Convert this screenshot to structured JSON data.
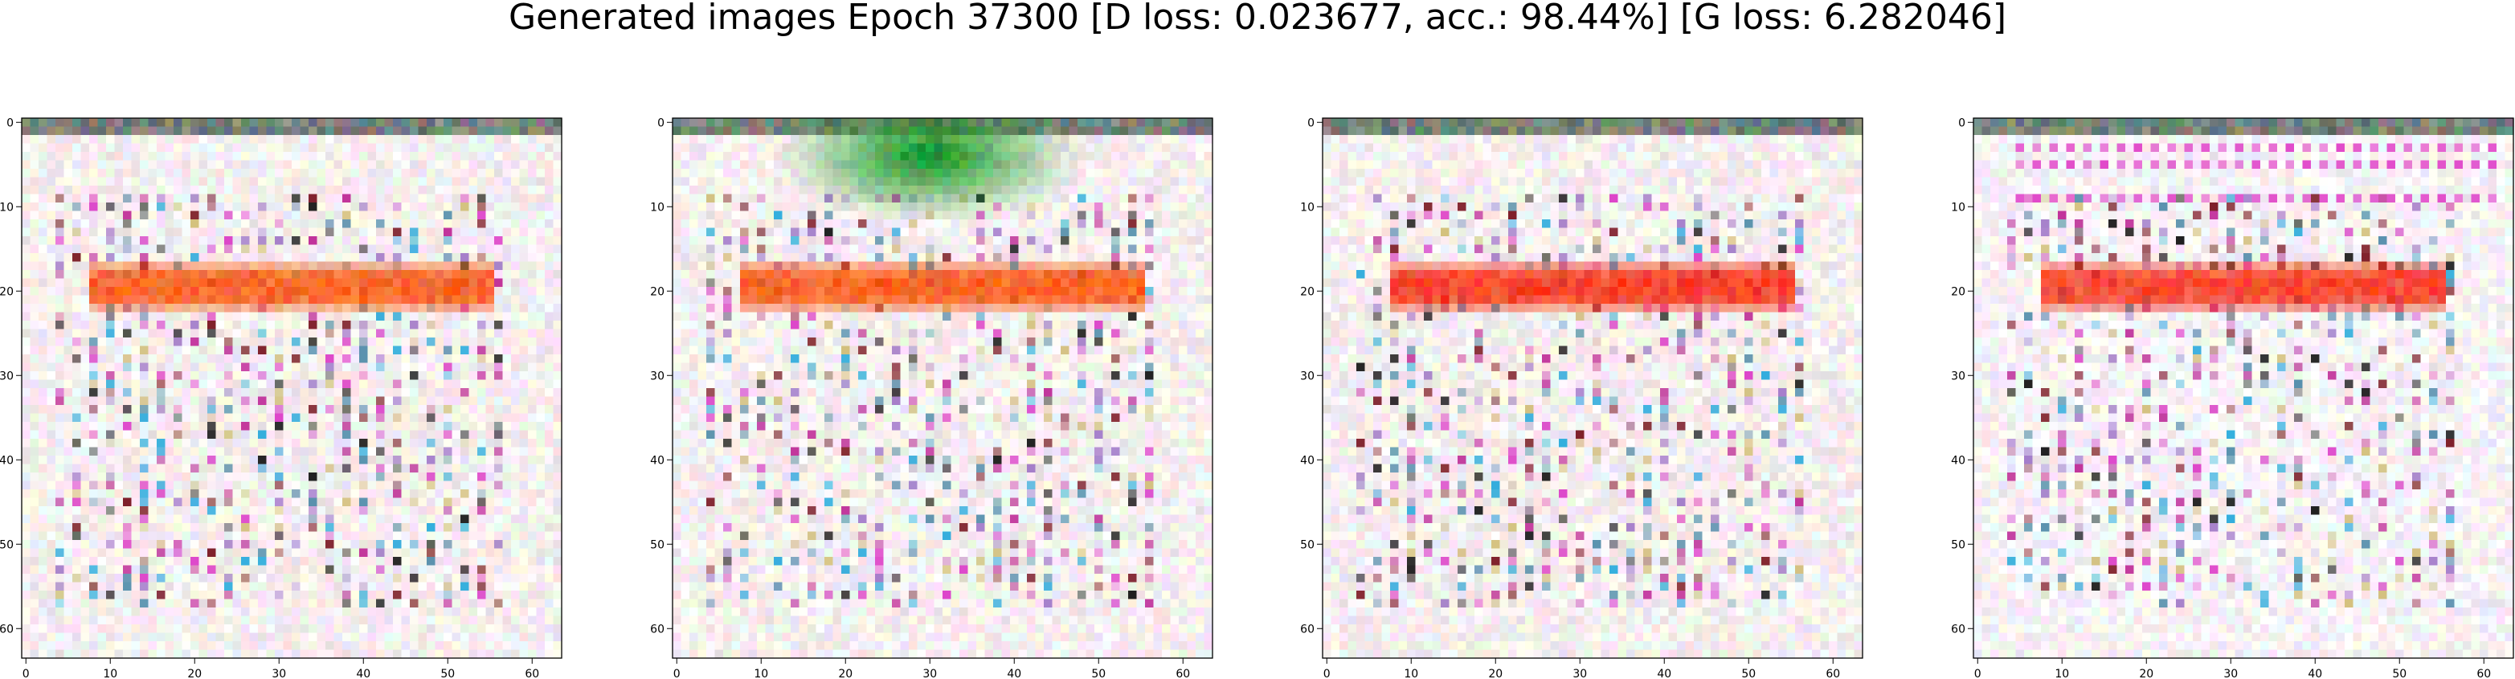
{
  "title": "Generated images Epoch 37300 [D loss: 0.023677, acc.: 98.44%] [G loss: 6.282046]",
  "chart_data": [
    {
      "type": "heatmap",
      "description": "generated 64x64 image",
      "xticks": [
        "0",
        "10",
        "20",
        "30",
        "40",
        "50",
        "60"
      ],
      "yticks": [
        "0",
        "10",
        "20",
        "30",
        "40",
        "50",
        "60"
      ],
      "xlim": [
        -0.5,
        63.5
      ],
      "ylim": [
        63.5,
        -0.5
      ],
      "features": [
        "horizontal orange-red stroke at rows 17-22",
        "dense dotted grid pattern"
      ],
      "colors": {
        "stroke": "#ff5a14",
        "background": "#f5eeee"
      }
    },
    {
      "type": "heatmap",
      "description": "generated 64x64 image",
      "xticks": [
        "0",
        "10",
        "20",
        "30",
        "40",
        "50",
        "60"
      ],
      "yticks": [
        "0",
        "10",
        "20",
        "30",
        "40",
        "50",
        "60"
      ],
      "xlim": [
        -0.5,
        63.5
      ],
      "ylim": [
        63.5,
        -0.5
      ],
      "features": [
        "green blob at top rows 0-12",
        "horizontal orange-red stroke at rows 17-22",
        "dense dotted grid pattern"
      ],
      "colors": {
        "stroke": "#ff5a14",
        "blob": "#1e9628",
        "background": "#f5eeee"
      }
    },
    {
      "type": "heatmap",
      "description": "generated 64x64 image",
      "xticks": [
        "0",
        "10",
        "20",
        "30",
        "40",
        "50",
        "60"
      ],
      "yticks": [
        "0",
        "10",
        "20",
        "30",
        "40",
        "50",
        "60"
      ],
      "xlim": [
        -0.5,
        63.5
      ],
      "ylim": [
        63.5,
        -0.5
      ],
      "features": [
        "horizontal red stroke at rows 17-22",
        "dense dotted grid pattern"
      ],
      "colors": {
        "stroke": "#ff3214",
        "background": "#f5eeee"
      }
    },
    {
      "type": "heatmap",
      "description": "generated 64x64 image",
      "xticks": [
        "0",
        "10",
        "20",
        "30",
        "40",
        "50",
        "60"
      ],
      "yticks": [
        "0",
        "10",
        "20",
        "30",
        "40",
        "50",
        "60"
      ],
      "xlim": [
        -0.5,
        63.5
      ],
      "ylim": [
        63.5,
        -0.5
      ],
      "features": [
        "magenta dotted rows at top",
        "horizontal red stroke at rows 17-22",
        "sparser dotted pattern"
      ],
      "colors": {
        "stroke": "#ff3a1e",
        "dots": "#e040c8",
        "background": "#f7f2f5"
      }
    }
  ]
}
